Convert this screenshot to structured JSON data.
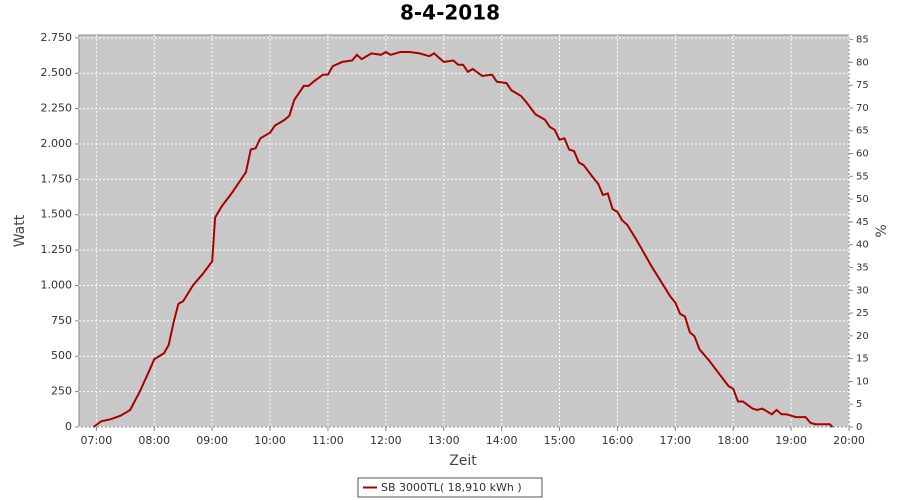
{
  "chart_data": {
    "type": "line",
    "title": "8-4-2018",
    "x_label": "Zeit",
    "y_label": "Watt",
    "y2_label": "%",
    "x": [
      "06:57",
      "07:05",
      "07:15",
      "07:25",
      "07:35",
      "07:45",
      "07:55",
      "08:00",
      "08:10",
      "08:15",
      "08:20",
      "08:25",
      "08:30",
      "08:40",
      "08:50",
      "09:00",
      "09:03",
      "09:10",
      "09:20",
      "09:30",
      "09:35",
      "09:40",
      "09:45",
      "09:50",
      "10:00",
      "10:05",
      "10:15",
      "10:20",
      "10:25",
      "10:35",
      "10:40",
      "10:45",
      "10:55",
      "11:00",
      "11:05",
      "11:15",
      "11:25",
      "11:30",
      "11:35",
      "11:45",
      "11:55",
      "12:00",
      "12:05",
      "12:15",
      "12:25",
      "12:35",
      "12:45",
      "12:50",
      "13:00",
      "13:10",
      "13:15",
      "13:20",
      "13:25",
      "13:30",
      "13:40",
      "13:50",
      "13:55",
      "14:05",
      "14:10",
      "14:20",
      "14:25",
      "14:35",
      "14:45",
      "14:50",
      "14:55",
      "15:00",
      "15:05",
      "15:10",
      "15:15",
      "15:20",
      "15:25",
      "15:35",
      "15:40",
      "15:45",
      "15:50",
      "15:55",
      "16:00",
      "16:05",
      "16:10",
      "16:20",
      "16:30",
      "16:35",
      "16:45",
      "16:55",
      "17:00",
      "17:05",
      "17:10",
      "17:15",
      "17:20",
      "17:25",
      "17:35",
      "17:45",
      "17:55",
      "18:00",
      "18:05",
      "18:10",
      "18:20",
      "18:25",
      "18:30",
      "18:35",
      "18:40",
      "18:45",
      "18:50",
      "18:55",
      "19:00",
      "19:05",
      "19:15",
      "19:20",
      "19:25",
      "19:35",
      "19:40",
      "19:43"
    ],
    "series": [
      {
        "name": "SB 3000TL( 18,910 kWh )",
        "color": "#aa0000",
        "values": [
          0,
          40,
          55,
          80,
          120,
          250,
          400,
          480,
          520,
          580,
          740,
          870,
          890,
          1000,
          1080,
          1170,
          1480,
          1560,
          1650,
          1750,
          1800,
          1960,
          1970,
          2040,
          2080,
          2130,
          2170,
          2200,
          2310,
          2410,
          2410,
          2440,
          2490,
          2490,
          2550,
          2580,
          2590,
          2630,
          2600,
          2640,
          2630,
          2650,
          2630,
          2650,
          2650,
          2640,
          2620,
          2640,
          2580,
          2590,
          2560,
          2560,
          2510,
          2530,
          2480,
          2490,
          2440,
          2430,
          2380,
          2340,
          2300,
          2210,
          2170,
          2120,
          2100,
          2030,
          2040,
          1960,
          1950,
          1870,
          1850,
          1760,
          1720,
          1640,
          1650,
          1540,
          1520,
          1460,
          1430,
          1320,
          1200,
          1140,
          1030,
          920,
          880,
          800,
          780,
          670,
          640,
          550,
          470,
          380,
          290,
          270,
          180,
          180,
          130,
          120,
          130,
          110,
          90,
          120,
          90,
          90,
          80,
          70,
          70,
          30,
          20,
          20,
          20,
          0
        ]
      }
    ],
    "xlim": [
      "06:42",
      "20:00"
    ],
    "xticks": [
      "07:00",
      "08:00",
      "09:00",
      "10:00",
      "11:00",
      "12:00",
      "13:00",
      "14:00",
      "15:00",
      "16:00",
      "17:00",
      "18:00",
      "19:00",
      "20:00"
    ],
    "ylim": [
      0,
      2770
    ],
    "yticks": [
      0,
      250,
      500,
      750,
      {
        "value": 1000,
        "label": "1.000"
      },
      {
        "value": 1250,
        "label": "1.250"
      },
      {
        "value": 1500,
        "label": "1.500"
      },
      {
        "value": 1750,
        "label": "1.750"
      },
      {
        "value": 2000,
        "label": "2.000"
      },
      {
        "value": 2250,
        "label": "2.250"
      },
      {
        "value": 2500,
        "label": "2.500"
      },
      {
        "value": 2750,
        "label": "2.750"
      }
    ],
    "y2lim": [
      0,
      86
    ],
    "y2ticks": [
      0,
      5,
      10,
      15,
      20,
      25,
      30,
      35,
      40,
      45,
      50,
      55,
      60,
      65,
      70,
      75,
      80,
      85
    ],
    "grid": true,
    "plot_background": "#c8c8c8"
  }
}
